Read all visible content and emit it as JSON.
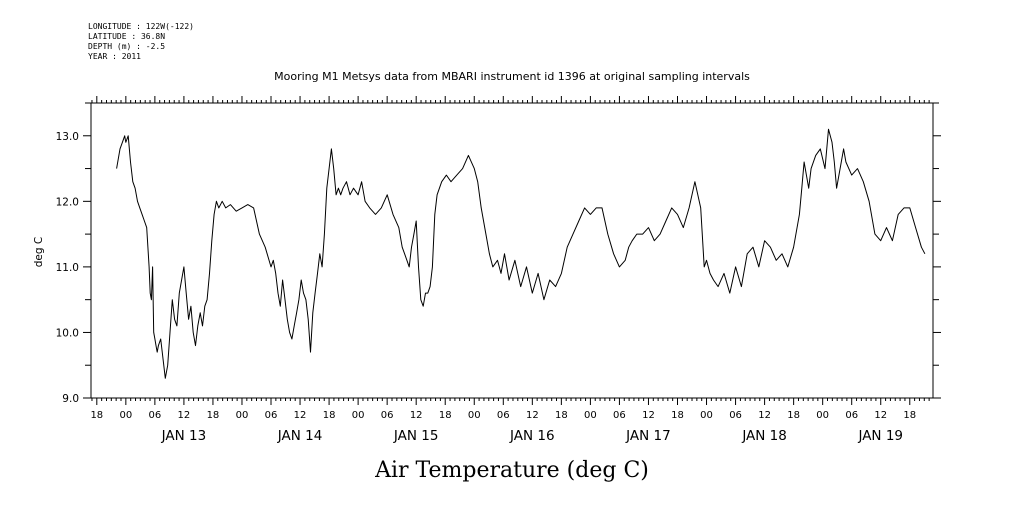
{
  "header": {
    "lines": [
      "LONGITUDE : 122W(-122)",
      "LATITUDE : 36.8N",
      "DEPTH (m) : -2.5",
      "YEAR : 2011"
    ]
  },
  "chart_data": {
    "type": "line",
    "title": "Mooring M1 Metsys data from MBARI instrument id 1396 at original sampling intervals",
    "xlabel": "Air Temperature (deg C)",
    "ylabel": "deg C",
    "ylim": [
      9.0,
      13.5
    ],
    "yticks": [
      9.0,
      10.0,
      11.0,
      12.0,
      13.0
    ],
    "ytick_labels": [
      "9.0",
      "10.0",
      "11.0",
      "12.0",
      "13.0"
    ],
    "xlim": [
      -0.3,
      6.95
    ],
    "x_unit": "days since JAN 13 00:00 (2011)",
    "hour_labels": [
      "00",
      "06",
      "12",
      "18"
    ],
    "day_labels": [
      "JAN 13",
      "JAN 14",
      "JAN 15",
      "JAN 16",
      "JAN 17",
      "JAN 18",
      "JAN 19"
    ],
    "grid": false,
    "series": [
      {
        "color": "#000000",
        "x": [
          -0.08,
          -0.05,
          -0.03,
          -0.01,
          0.0,
          0.02,
          0.04,
          0.06,
          0.08,
          0.1,
          0.12,
          0.14,
          0.16,
          0.18,
          0.2,
          0.21,
          0.22,
          0.23,
          0.24,
          0.25,
          0.26,
          0.27,
          0.28,
          0.3,
          0.32,
          0.34,
          0.36,
          0.38,
          0.4,
          0.42,
          0.44,
          0.46,
          0.48,
          0.5,
          0.52,
          0.54,
          0.56,
          0.58,
          0.6,
          0.62,
          0.64,
          0.66,
          0.68,
          0.7,
          0.72,
          0.74,
          0.76,
          0.78,
          0.8,
          0.83,
          0.86,
          0.9,
          0.95,
          1.0,
          1.05,
          1.1,
          1.15,
          1.2,
          1.25,
          1.27,
          1.29,
          1.31,
          1.33,
          1.35,
          1.37,
          1.39,
          1.41,
          1.43,
          1.45,
          1.47,
          1.49,
          1.51,
          1.53,
          1.55,
          1.57,
          1.59,
          1.61,
          1.63,
          1.65,
          1.67,
          1.69,
          1.71,
          1.73,
          1.75,
          1.77,
          1.79,
          1.81,
          1.83,
          1.85,
          1.87,
          1.9,
          1.93,
          1.96,
          2.0,
          2.03,
          2.06,
          2.1,
          2.15,
          2.2,
          2.25,
          2.3,
          2.35,
          2.38,
          2.4,
          2.42,
          2.44,
          2.46,
          2.48,
          2.5,
          2.52,
          2.54,
          2.56,
          2.58,
          2.6,
          2.62,
          2.64,
          2.66,
          2.68,
          2.72,
          2.76,
          2.8,
          2.85,
          2.9,
          2.95,
          3.0,
          3.03,
          3.06,
          3.1,
          3.13,
          3.16,
          3.2,
          3.23,
          3.26,
          3.3,
          3.35,
          3.4,
          3.45,
          3.5,
          3.55,
          3.6,
          3.65,
          3.7,
          3.75,
          3.8,
          3.85,
          3.9,
          3.95,
          4.0,
          4.05,
          4.1,
          4.15,
          4.2,
          4.25,
          4.3,
          4.33,
          4.36,
          4.4,
          4.45,
          4.5,
          4.55,
          4.6,
          4.65,
          4.7,
          4.75,
          4.8,
          4.85,
          4.9,
          4.95,
          4.98,
          5.0,
          5.03,
          5.06,
          5.1,
          5.15,
          5.2,
          5.25,
          5.3,
          5.35,
          5.4,
          5.45,
          5.5,
          5.55,
          5.6,
          5.65,
          5.7,
          5.75,
          5.8,
          5.82,
          5.84,
          5.86,
          5.88,
          5.9,
          5.94,
          5.98,
          6.02,
          6.05,
          6.08,
          6.1,
          6.12,
          6.15,
          6.18,
          6.2,
          6.25,
          6.3,
          6.35,
          6.4,
          6.45,
          6.5,
          6.55,
          6.6,
          6.65,
          6.7,
          6.75,
          6.8,
          6.85,
          6.88
        ],
        "y": [
          12.5,
          12.8,
          12.9,
          13.0,
          12.9,
          13.0,
          12.6,
          12.3,
          12.2,
          12.0,
          11.9,
          11.8,
          11.7,
          11.6,
          11.0,
          10.6,
          10.5,
          11.0,
          10.0,
          9.9,
          9.8,
          9.7,
          9.8,
          9.9,
          9.6,
          9.3,
          9.5,
          10.0,
          10.5,
          10.2,
          10.1,
          10.6,
          10.8,
          11.0,
          10.6,
          10.2,
          10.4,
          10.0,
          9.8,
          10.1,
          10.3,
          10.1,
          10.4,
          10.5,
          10.9,
          11.4,
          11.8,
          12.0,
          11.9,
          12.0,
          11.9,
          11.95,
          11.85,
          11.9,
          11.95,
          11.9,
          11.5,
          11.3,
          11.0,
          11.1,
          10.9,
          10.6,
          10.4,
          10.8,
          10.5,
          10.2,
          10.0,
          9.9,
          10.1,
          10.3,
          10.5,
          10.8,
          10.6,
          10.5,
          10.2,
          9.7,
          10.3,
          10.6,
          10.9,
          11.2,
          11.0,
          11.5,
          12.2,
          12.5,
          12.8,
          12.5,
          12.1,
          12.2,
          12.1,
          12.2,
          12.3,
          12.1,
          12.2,
          12.1,
          12.3,
          12.0,
          11.9,
          11.8,
          11.9,
          12.1,
          11.8,
          11.6,
          11.3,
          11.2,
          11.1,
          11.0,
          11.3,
          11.5,
          11.7,
          11.0,
          10.5,
          10.4,
          10.6,
          10.6,
          10.7,
          11.0,
          11.8,
          12.1,
          12.3,
          12.4,
          12.3,
          12.4,
          12.5,
          12.7,
          12.5,
          12.3,
          11.9,
          11.5,
          11.2,
          11.0,
          11.1,
          10.9,
          11.2,
          10.8,
          11.1,
          10.7,
          11.0,
          10.6,
          10.9,
          10.5,
          10.8,
          10.7,
          10.9,
          11.3,
          11.5,
          11.7,
          11.9,
          11.8,
          11.9,
          11.9,
          11.5,
          11.2,
          11.0,
          11.1,
          11.3,
          11.4,
          11.5,
          11.5,
          11.6,
          11.4,
          11.5,
          11.7,
          11.9,
          11.8,
          11.6,
          11.9,
          12.3,
          11.9,
          11.0,
          11.1,
          10.9,
          10.8,
          10.7,
          10.9,
          10.6,
          11.0,
          10.7,
          11.2,
          11.3,
          11.0,
          11.4,
          11.3,
          11.1,
          11.2,
          11.0,
          11.3,
          11.8,
          12.2,
          12.6,
          12.4,
          12.2,
          12.5,
          12.7,
          12.8,
          12.5,
          13.1,
          12.9,
          12.6,
          12.2,
          12.5,
          12.8,
          12.6,
          12.4,
          12.5,
          12.3,
          12.0,
          11.5,
          11.4,
          11.6,
          11.4,
          11.8,
          11.9,
          11.9,
          11.6,
          11.3,
          11.2
        ]
      }
    ]
  }
}
